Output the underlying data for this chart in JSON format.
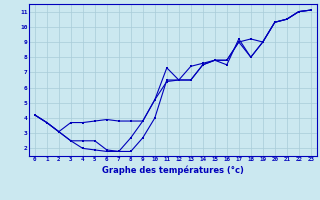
{
  "xlabel": "Graphe des températures (°c)",
  "bg_color": "#cbe8f0",
  "line_color": "#0000bb",
  "grid_color": "#a8ccd8",
  "x_data": [
    0,
    1,
    2,
    3,
    4,
    5,
    6,
    7,
    8,
    9,
    10,
    11,
    12,
    13,
    14,
    15,
    16,
    17,
    18,
    19,
    20,
    21,
    22,
    23
  ],
  "line1": [
    4.2,
    3.7,
    3.1,
    3.7,
    3.7,
    3.8,
    3.9,
    3.8,
    3.8,
    3.8,
    5.2,
    7.3,
    6.5,
    7.4,
    7.6,
    7.8,
    7.5,
    9.2,
    8.0,
    9.0,
    10.3,
    10.5,
    11.0,
    11.1
  ],
  "line2": [
    4.2,
    3.7,
    3.1,
    2.5,
    2.0,
    1.9,
    1.8,
    1.8,
    2.7,
    3.8,
    5.2,
    6.4,
    6.5,
    6.5,
    7.5,
    7.8,
    7.8,
    9.0,
    8.0,
    9.0,
    10.3,
    10.5,
    11.0,
    11.1
  ],
  "line3": [
    4.2,
    3.7,
    3.1,
    2.5,
    2.5,
    2.5,
    1.9,
    1.8,
    1.8,
    2.7,
    4.0,
    6.5,
    6.5,
    6.5,
    7.5,
    7.8,
    7.8,
    9.0,
    9.2,
    9.0,
    10.3,
    10.5,
    11.0,
    11.1
  ],
  "xlim": [
    -0.5,
    23.5
  ],
  "ylim": [
    1.5,
    11.5
  ],
  "yticks": [
    2,
    3,
    4,
    5,
    6,
    7,
    8,
    9,
    10,
    11
  ],
  "xticks": [
    0,
    1,
    2,
    3,
    4,
    5,
    6,
    7,
    8,
    9,
    10,
    11,
    12,
    13,
    14,
    15,
    16,
    17,
    18,
    19,
    20,
    21,
    22,
    23
  ]
}
